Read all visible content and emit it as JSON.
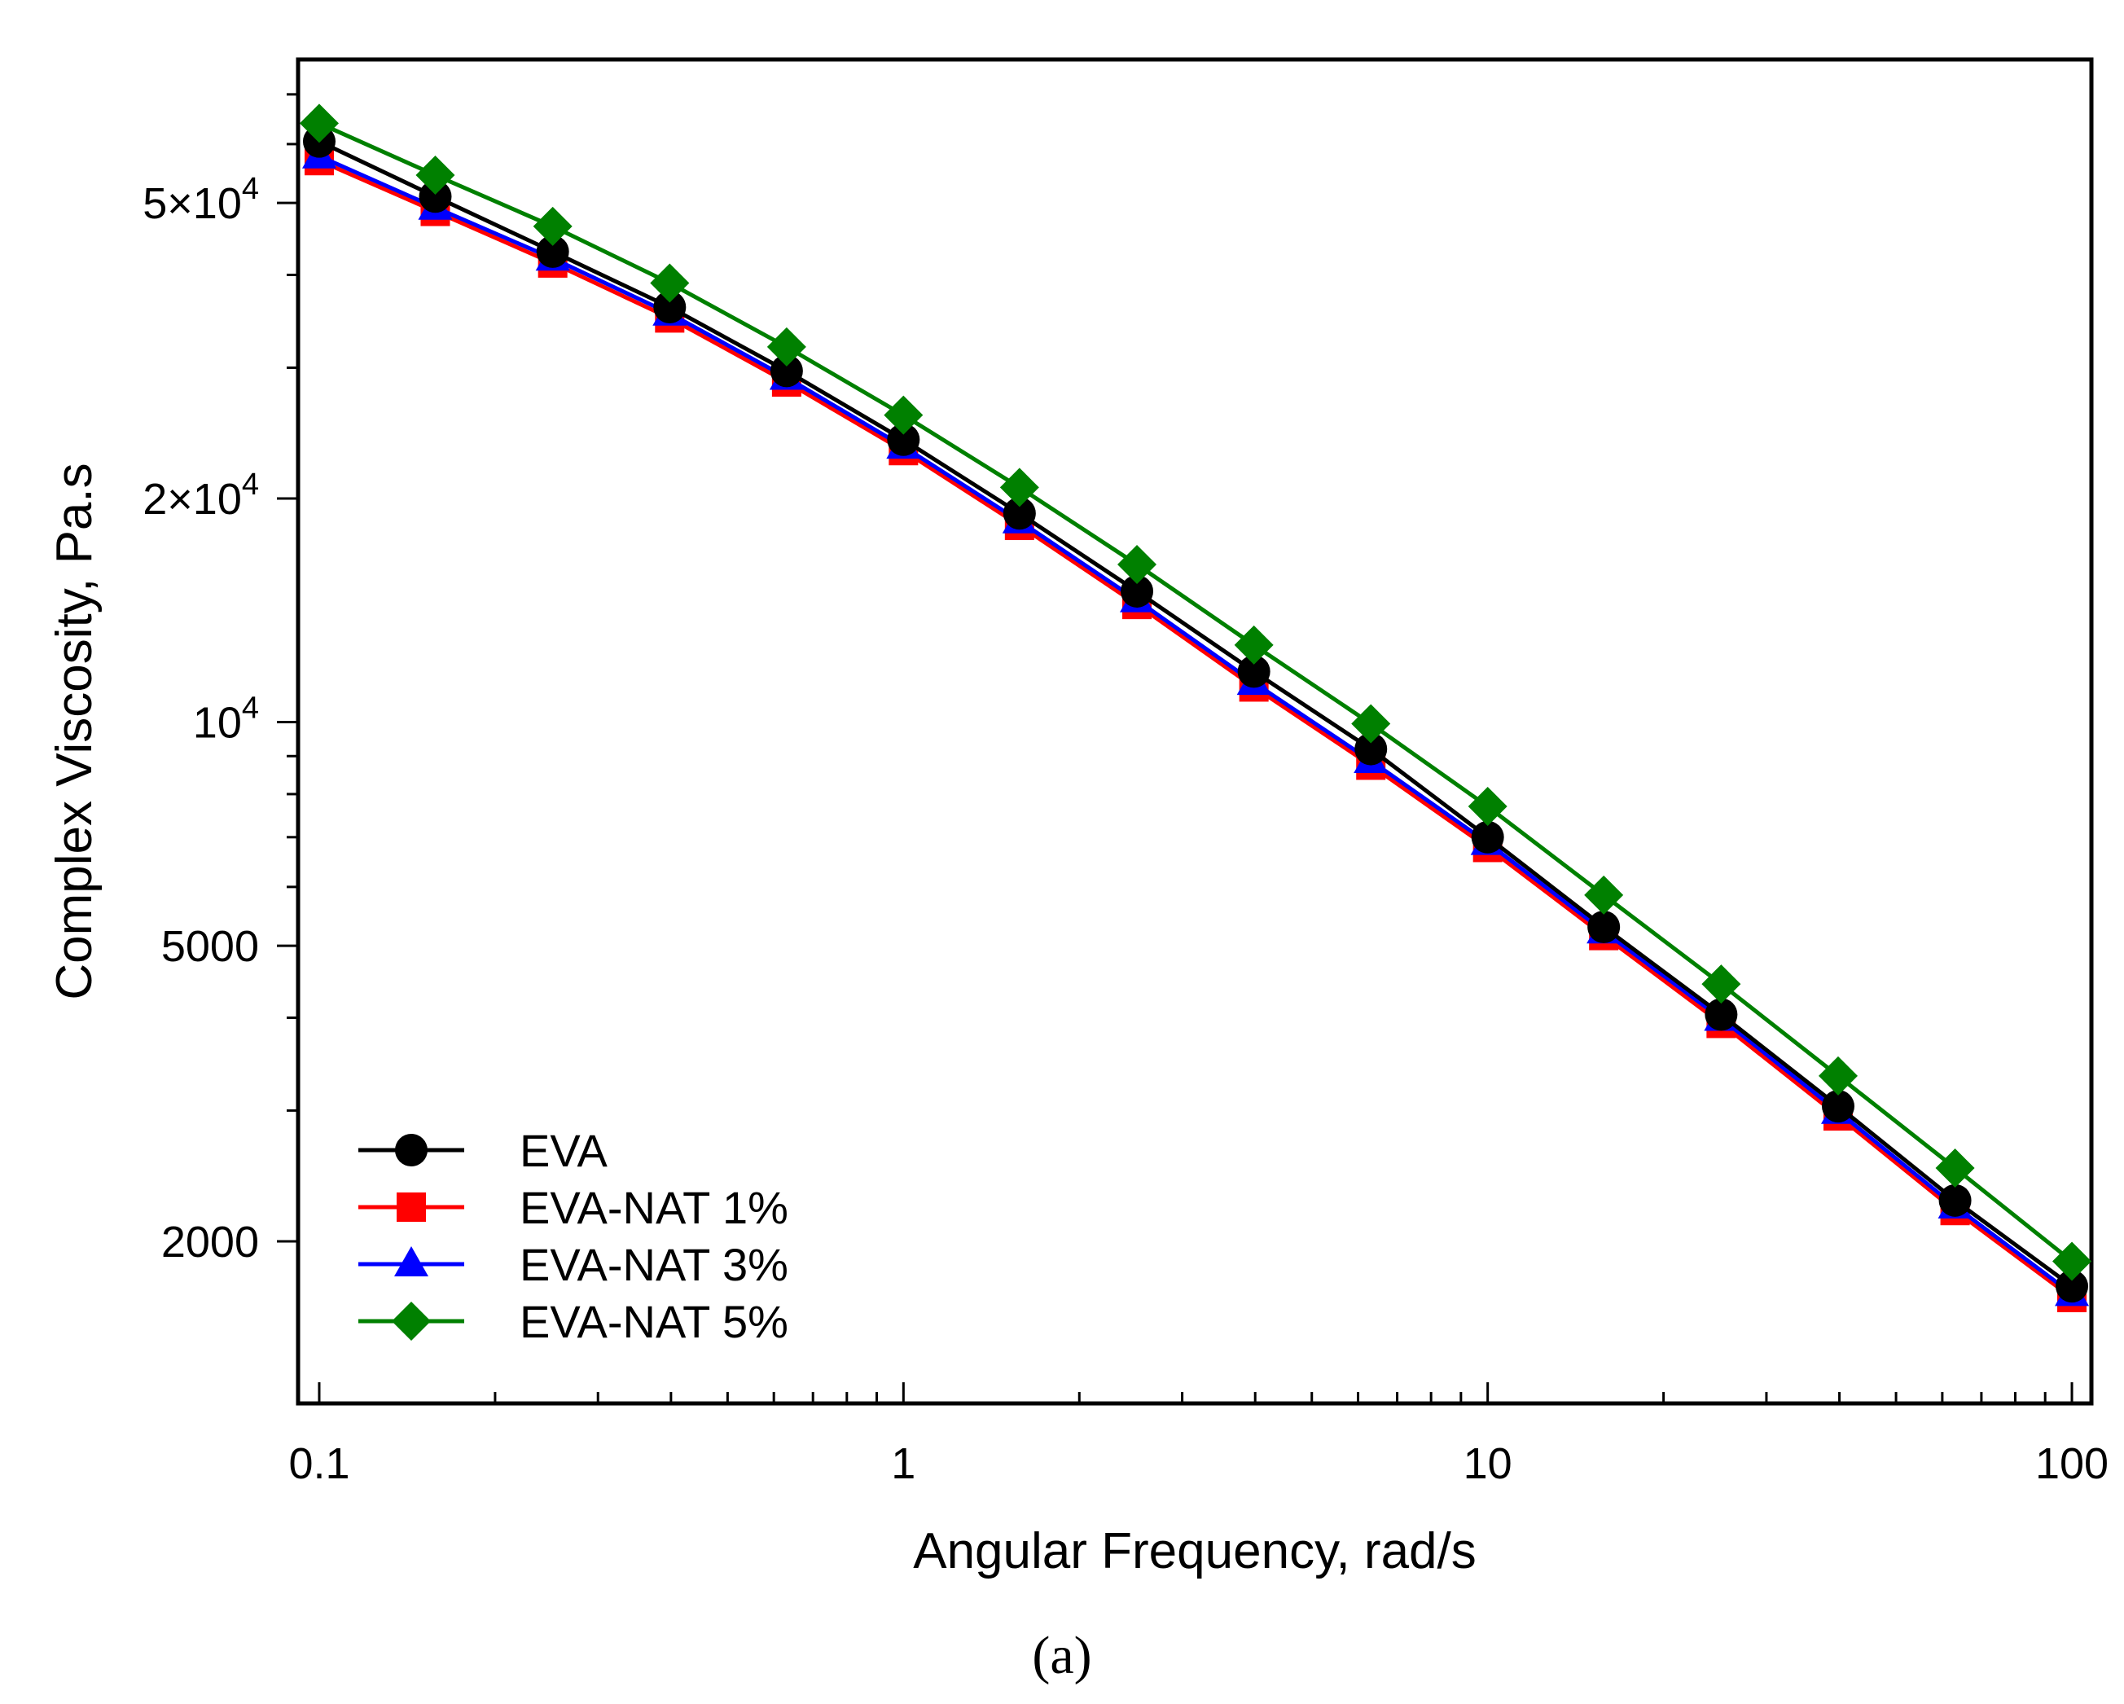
{
  "chart_data": {
    "type": "line",
    "title": "",
    "xlabel": "Angular Frequency, rad/s",
    "ylabel": "Complex Viscosity, Pa.s",
    "xscale": "log",
    "yscale": "log",
    "xlim": [
      0.092,
      108
    ],
    "ylim": [
      1210,
      78000
    ],
    "x_ticks": [
      {
        "value": 0.1,
        "label": "0.1"
      },
      {
        "value": 1,
        "label": "1"
      },
      {
        "value": 10,
        "label": "10"
      },
      {
        "value": 100,
        "label": "100"
      }
    ],
    "y_ticks": [
      {
        "value": 2000,
        "label": "2000",
        "sup": ""
      },
      {
        "value": 5000,
        "label": "5000",
        "sup": ""
      },
      {
        "value": 10000,
        "label": "10",
        "sup": "4"
      },
      {
        "value": 20000,
        "label": "2×10",
        "sup": "4"
      },
      {
        "value": 50000,
        "label": "5×10",
        "sup": "4"
      }
    ],
    "x": [
      0.1,
      0.158,
      0.251,
      0.398,
      0.631,
      1.0,
      1.58,
      2.51,
      3.98,
      6.31,
      10.0,
      15.8,
      25.1,
      39.8,
      63.1,
      100.0
    ],
    "series": [
      {
        "name": "EVA-NAT 1%",
        "color": "#ff0000",
        "marker": "square",
        "values": [
          57000,
          48700,
          41500,
          35000,
          28700,
          23200,
          18400,
          14400,
          11150,
          8750,
          6780,
          5160,
          3930,
          2950,
          2200,
          1680
        ]
      },
      {
        "name": "EVA-NAT 3%",
        "color": "#0000ff",
        "marker": "triangle",
        "values": [
          57800,
          49300,
          42100,
          35500,
          29100,
          23500,
          18650,
          14600,
          11300,
          8870,
          6880,
          5230,
          3990,
          2990,
          2230,
          1700
        ]
      },
      {
        "name": "EVA",
        "color": "#000000",
        "marker": "circle",
        "values": [
          60500,
          51000,
          43000,
          36200,
          29700,
          24000,
          19100,
          15000,
          11700,
          9200,
          7000,
          5300,
          4040,
          3040,
          2270,
          1740
        ]
      },
      {
        "name": "EVA-NAT 5%",
        "color": "#008000",
        "marker": "diamond",
        "values": [
          64000,
          54500,
          46500,
          39000,
          32000,
          25900,
          20700,
          16300,
          12700,
          9950,
          7700,
          5850,
          4440,
          3340,
          2510,
          1880
        ]
      }
    ],
    "legend": {
      "position": "bottom-left",
      "entries": [
        {
          "label": "EVA",
          "color": "#000000",
          "marker": "circle"
        },
        {
          "label": "EVA-NAT 1%",
          "color": "#ff0000",
          "marker": "square"
        },
        {
          "label": "EVA-NAT 3%",
          "color": "#0000ff",
          "marker": "triangle"
        },
        {
          "label": "EVA-NAT 5%",
          "color": "#008000",
          "marker": "diamond"
        }
      ]
    }
  },
  "caption": "(a)"
}
